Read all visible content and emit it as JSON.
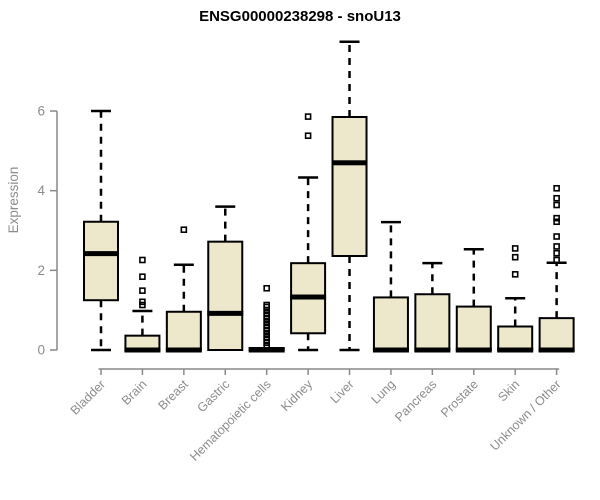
{
  "chart_data": {
    "type": "boxplot",
    "title": "ENSG00000238298 - snoU13",
    "xlabel": "",
    "ylabel": "Expression",
    "yticks": [
      0,
      2,
      4,
      6
    ],
    "ylim": [
      0,
      7.9
    ],
    "grid": false,
    "legend": false,
    "categories": [
      "Bladder",
      "Brain",
      "Breast",
      "Gastric",
      "Hematopoietic cells",
      "Kidney",
      "Liver",
      "Lung",
      "Pancreas",
      "Prostate",
      "Skin",
      "Unknown / Other"
    ],
    "series": [
      {
        "label": "Bladder",
        "whisker_low": 0,
        "q1": 1.25,
        "median": 2.42,
        "q3": 3.22,
        "whisker_high": 6.0,
        "outliers": []
      },
      {
        "label": "Brain",
        "whisker_low": 0,
        "q1": 0,
        "median": 0,
        "q3": 0.36,
        "whisker_high": 0.98,
        "outliers": [
          1.13,
          1.21,
          1.49,
          1.84,
          2.26
        ]
      },
      {
        "label": "Breast",
        "whisker_low": 0,
        "q1": 0,
        "median": 0,
        "q3": 0.96,
        "whisker_high": 2.14,
        "outliers": [
          3.02
        ]
      },
      {
        "label": "Gastric",
        "whisker_low": 0,
        "q1": 0,
        "median": 0.92,
        "q3": 2.72,
        "whisker_high": 3.6,
        "outliers": []
      },
      {
        "label": "Hematopoietic cells",
        "whisker_low": 0,
        "q1": 0,
        "median": 0,
        "q3": 0.05,
        "whisker_high": 0.05,
        "outliers": [
          0.1,
          0.18,
          0.25,
          0.32,
          0.4,
          0.48,
          0.55,
          0.62,
          0.7,
          0.78,
          0.85,
          0.92,
          1.0,
          1.08,
          1.13,
          1.55
        ]
      },
      {
        "label": "Kidney",
        "whisker_low": 0,
        "q1": 0.42,
        "median": 1.33,
        "q3": 2.18,
        "whisker_high": 4.33,
        "outliers": [
          5.38,
          5.86
        ]
      },
      {
        "label": "Liver",
        "whisker_low": 0,
        "q1": 2.36,
        "median": 4.7,
        "q3": 5.85,
        "whisker_high": 7.74,
        "outliers": []
      },
      {
        "label": "Lung",
        "whisker_low": 0,
        "q1": 0,
        "median": 0,
        "q3": 1.32,
        "whisker_high": 3.21,
        "outliers": []
      },
      {
        "label": "Pancreas",
        "whisker_low": 0,
        "q1": 0,
        "median": 0,
        "q3": 1.4,
        "whisker_high": 2.18,
        "outliers": []
      },
      {
        "label": "Prostate",
        "whisker_low": 0,
        "q1": 0,
        "median": 0,
        "q3": 1.09,
        "whisker_high": 2.53,
        "outliers": []
      },
      {
        "label": "Skin",
        "whisker_low": 0,
        "q1": 0,
        "median": 0,
        "q3": 0.59,
        "whisker_high": 1.3,
        "outliers": [
          1.9,
          2.33,
          2.55
        ]
      },
      {
        "label": "Unknown / Other",
        "whisker_low": 0,
        "q1": 0,
        "median": 0,
        "q3": 0.8,
        "whisker_high": 2.19,
        "outliers": [
          2.26,
          2.43,
          2.6,
          2.85,
          3.22,
          3.31,
          3.64,
          3.81,
          4.06
        ]
      }
    ],
    "colors": {
      "box_fill": "#EDE7CB",
      "box_border": "#000000",
      "median": "#000000",
      "whisker": "#000000",
      "outlier": "#000000",
      "axis": "#898989",
      "tick_text": "#8c8c8c",
      "title_text": "#000000"
    }
  }
}
